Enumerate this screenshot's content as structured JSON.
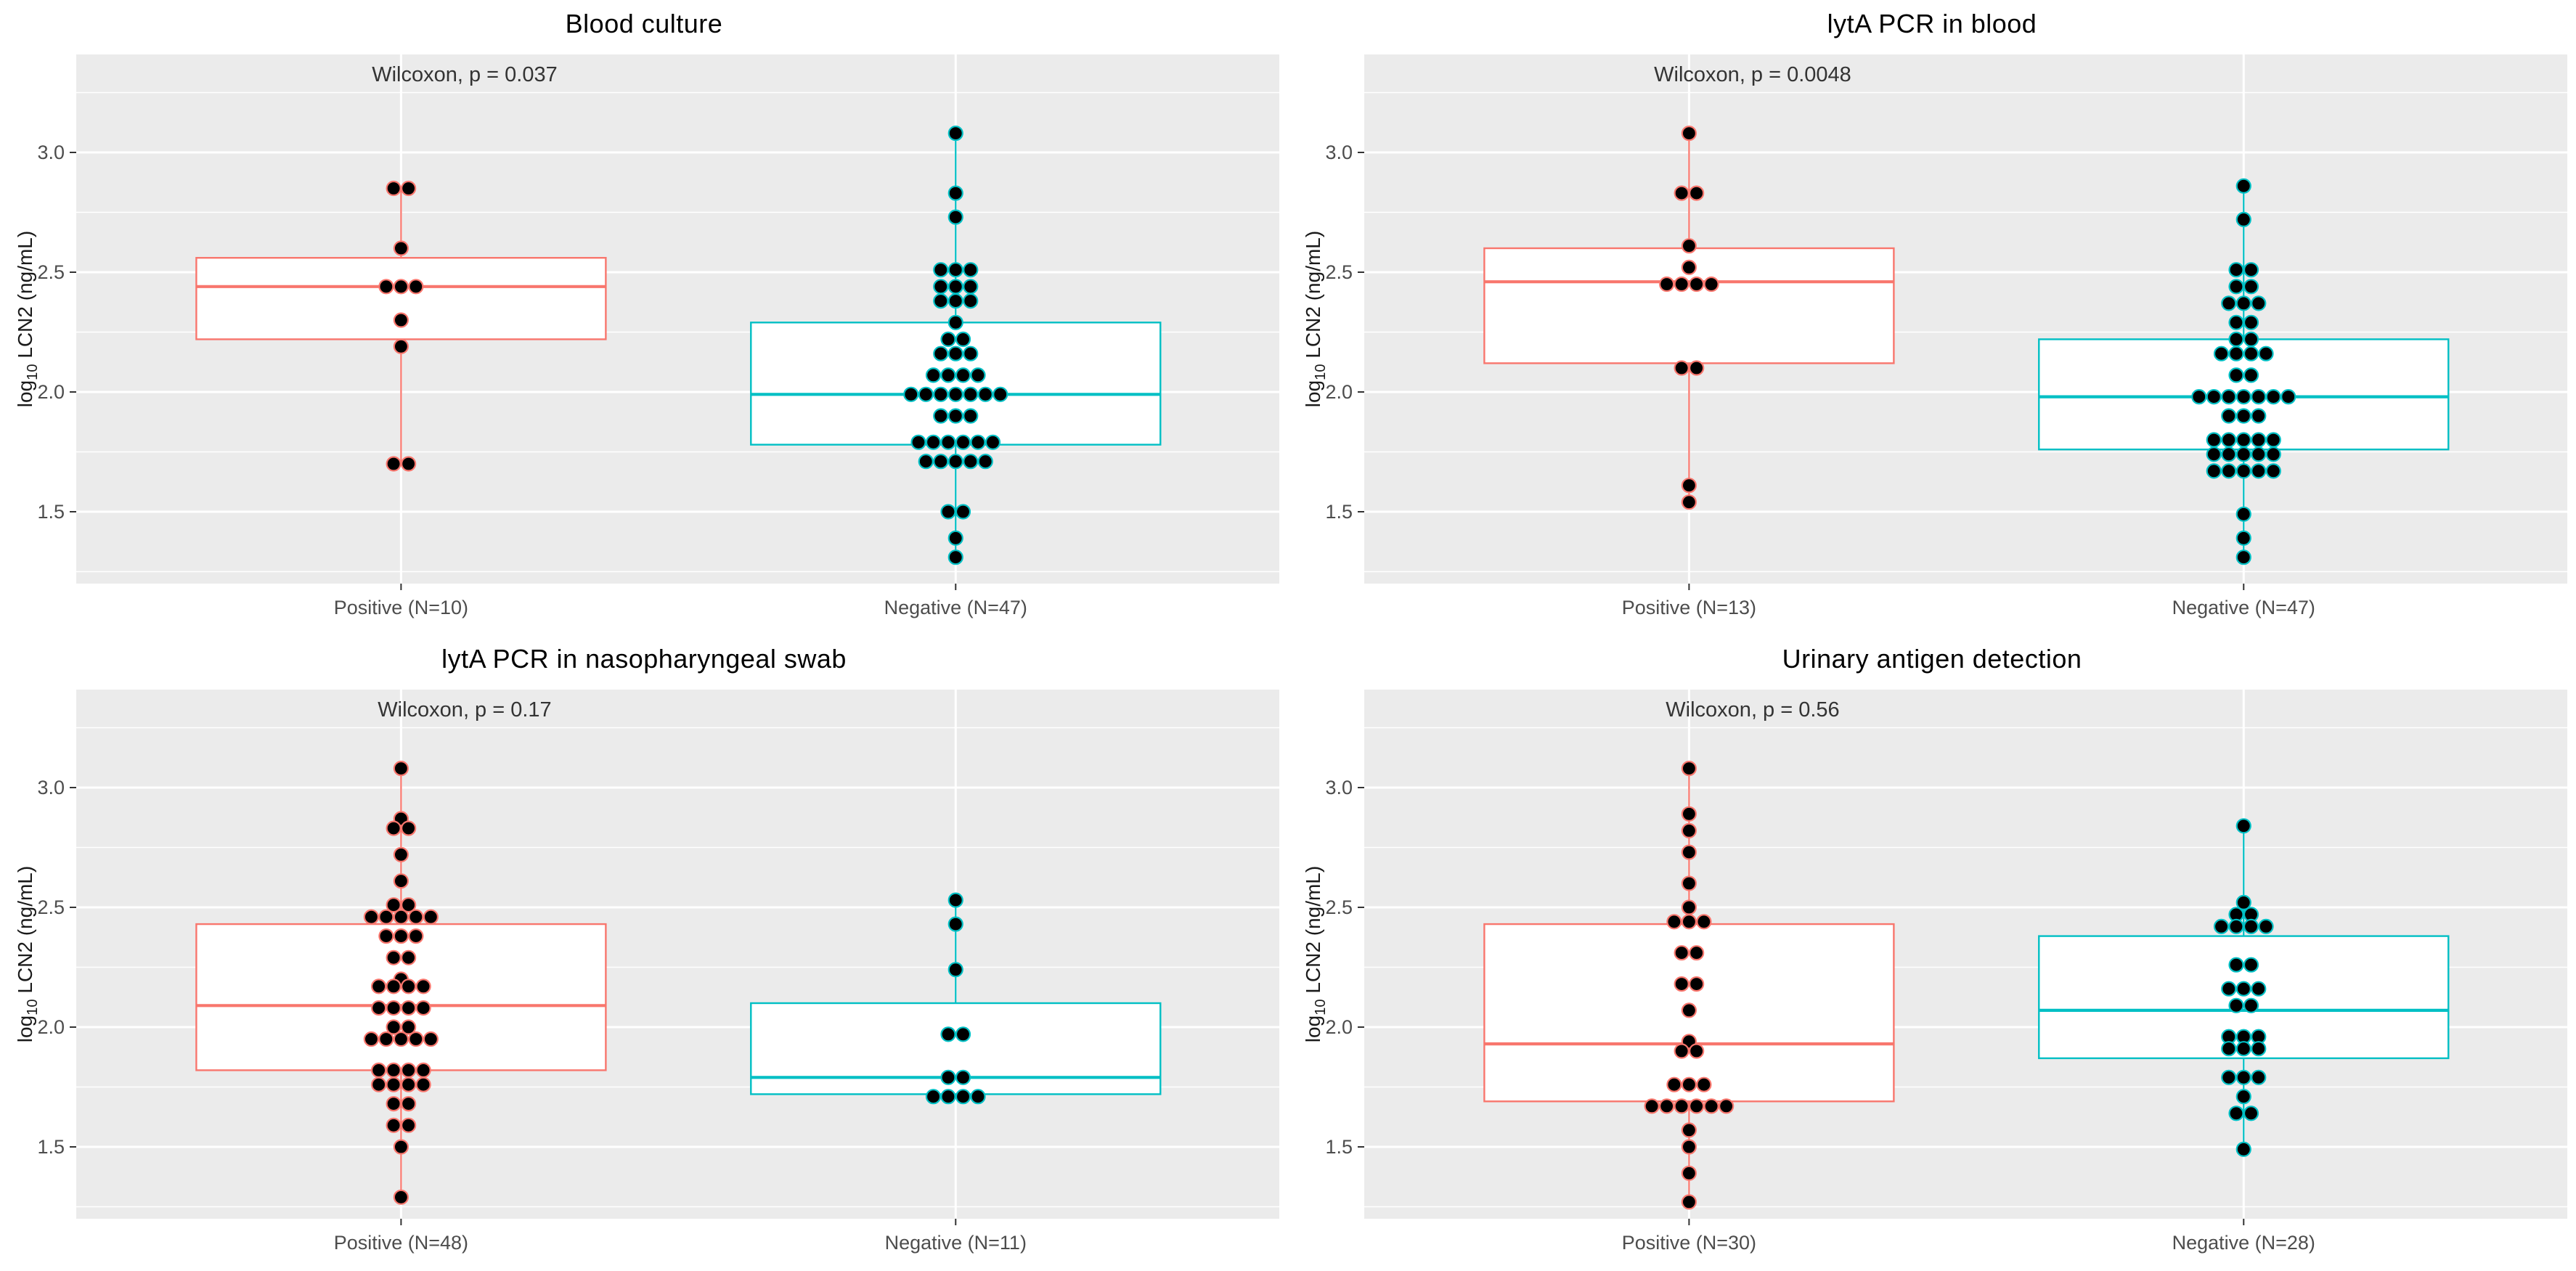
{
  "figure": {
    "background": "#ffffff",
    "panel_background": "#ebebeb",
    "grid_color": "#ffffff",
    "positive_color": "#F8766D",
    "negative_color": "#00BFC4",
    "dot_fill": "#000000",
    "axis_text_color": "#4d4d4d",
    "axis_title_color": "#1a1a1a",
    "p_label_color": "#333333",
    "title_color": "#000000"
  },
  "y_axis": {
    "title_prefix": "log",
    "title_sub": "10",
    "title_suffix": " LCN2 (ng/mL)",
    "title_full": "log10 LCN2 (ng/mL)",
    "tick_labels": [
      "3.0",
      "2.5",
      "2.0",
      "1.5"
    ],
    "tick_values": [
      3.0,
      2.5,
      2.0,
      1.5
    ],
    "minor_values": [
      3.25,
      2.75,
      2.25,
      1.75,
      1.25
    ]
  },
  "chart_data": [
    {
      "type": "boxplot-dotplot",
      "title": "Blood culture",
      "p_label": "Wilcoxon, p = 0.037",
      "ylabel": "log10 LCN2 (ng/mL)",
      "ylim": [
        1.2,
        3.41
      ],
      "groups": [
        {
          "key": "positive",
          "x_label": "Positive (N=10)",
          "n": 10,
          "color": "#F8766D",
          "box": {
            "q1": 2.22,
            "median": 2.44,
            "q3": 2.56,
            "whisker_low": 1.7,
            "whisker_high": 2.85
          },
          "dots": [
            [
              2.85,
              2
            ],
            [
              2.6,
              1
            ],
            [
              2.44,
              3
            ],
            [
              2.3,
              1
            ],
            [
              2.19,
              1
            ],
            [
              1.7,
              2
            ]
          ]
        },
        {
          "key": "negative",
          "x_label": "Negative (N=47)",
          "n": 47,
          "color": "#00BFC4",
          "box": {
            "q1": 1.78,
            "median": 1.99,
            "q3": 2.29,
            "whisker_low": 1.31,
            "whisker_high": 3.08
          },
          "dots": [
            [
              3.08,
              1
            ],
            [
              2.83,
              1
            ],
            [
              2.73,
              1
            ],
            [
              2.51,
              3
            ],
            [
              2.44,
              3
            ],
            [
              2.38,
              3
            ],
            [
              2.29,
              1
            ],
            [
              2.22,
              2
            ],
            [
              2.16,
              3
            ],
            [
              2.07,
              4
            ],
            [
              1.99,
              7
            ],
            [
              1.9,
              3
            ],
            [
              1.79,
              6
            ],
            [
              1.71,
              5
            ],
            [
              1.5,
              2
            ],
            [
              1.39,
              1
            ],
            [
              1.31,
              1
            ]
          ]
        }
      ]
    },
    {
      "type": "boxplot-dotplot",
      "title": "lytA PCR in blood",
      "p_label": "Wilcoxon, p = 0.0048",
      "ylabel": "log10 LCN2 (ng/mL)",
      "ylim": [
        1.2,
        3.41
      ],
      "groups": [
        {
          "key": "positive",
          "x_label": "Positive (N=13)",
          "n": 13,
          "color": "#F8766D",
          "box": {
            "q1": 2.12,
            "median": 2.46,
            "q3": 2.6,
            "whisker_low": 1.54,
            "whisker_high": 3.08
          },
          "dots": [
            [
              3.08,
              1
            ],
            [
              2.83,
              2
            ],
            [
              2.61,
              1
            ],
            [
              2.52,
              1
            ],
            [
              2.45,
              4
            ],
            [
              2.1,
              2
            ],
            [
              1.61,
              1
            ],
            [
              1.54,
              1
            ]
          ]
        },
        {
          "key": "negative",
          "x_label": "Negative (N=47)",
          "n": 47,
          "color": "#00BFC4",
          "box": {
            "q1": 1.76,
            "median": 1.98,
            "q3": 2.22,
            "whisker_low": 1.31,
            "whisker_high": 2.86
          },
          "dots": [
            [
              2.86,
              1
            ],
            [
              2.72,
              1
            ],
            [
              2.51,
              2
            ],
            [
              2.44,
              2
            ],
            [
              2.37,
              3
            ],
            [
              2.29,
              2
            ],
            [
              2.22,
              2
            ],
            [
              2.16,
              4
            ],
            [
              2.07,
              2
            ],
            [
              1.98,
              7
            ],
            [
              1.9,
              3
            ],
            [
              1.8,
              5
            ],
            [
              1.74,
              5
            ],
            [
              1.67,
              5
            ],
            [
              1.49,
              1
            ],
            [
              1.39,
              1
            ],
            [
              1.31,
              1
            ]
          ]
        }
      ]
    },
    {
      "type": "boxplot-dotplot",
      "title": "lytA PCR in nasopharyngeal swab",
      "p_label": "Wilcoxon, p = 0.17",
      "ylabel": "log10 LCN2 (ng/mL)",
      "ylim": [
        1.2,
        3.41
      ],
      "groups": [
        {
          "key": "positive",
          "x_label": "Positive (N=48)",
          "n": 48,
          "color": "#F8766D",
          "box": {
            "q1": 1.82,
            "median": 2.09,
            "q3": 2.43,
            "whisker_low": 1.29,
            "whisker_high": 3.08
          },
          "dots": [
            [
              3.08,
              1
            ],
            [
              2.87,
              1
            ],
            [
              2.83,
              2
            ],
            [
              2.72,
              1
            ],
            [
              2.61,
              1
            ],
            [
              2.51,
              2
            ],
            [
              2.46,
              5
            ],
            [
              2.38,
              3
            ],
            [
              2.29,
              2
            ],
            [
              2.2,
              1
            ],
            [
              2.17,
              4
            ],
            [
              2.08,
              4
            ],
            [
              2.0,
              2
            ],
            [
              1.95,
              5
            ],
            [
              1.82,
              4
            ],
            [
              1.76,
              4
            ],
            [
              1.68,
              2
            ],
            [
              1.59,
              2
            ],
            [
              1.5,
              1
            ],
            [
              1.29,
              1
            ]
          ]
        },
        {
          "key": "negative",
          "x_label": "Negative (N=11)",
          "n": 11,
          "color": "#00BFC4",
          "box": {
            "q1": 1.72,
            "median": 1.79,
            "q3": 2.1,
            "whisker_low": 1.71,
            "whisker_high": 2.53
          },
          "dots": [
            [
              2.53,
              1
            ],
            [
              2.43,
              1
            ],
            [
              2.24,
              1
            ],
            [
              1.97,
              2
            ],
            [
              1.79,
              2
            ],
            [
              1.71,
              4
            ]
          ]
        }
      ]
    },
    {
      "type": "boxplot-dotplot",
      "title": "Urinary antigen detection",
      "p_label": "Wilcoxon, p = 0.56",
      "ylabel": "log10 LCN2 (ng/mL)",
      "ylim": [
        1.2,
        3.41
      ],
      "groups": [
        {
          "key": "positive",
          "x_label": "Positive (N=30)",
          "n": 30,
          "color": "#F8766D",
          "box": {
            "q1": 1.69,
            "median": 1.93,
            "q3": 2.43,
            "whisker_low": 1.27,
            "whisker_high": 3.08
          },
          "dots": [
            [
              3.08,
              1
            ],
            [
              2.89,
              1
            ],
            [
              2.82,
              1
            ],
            [
              2.73,
              1
            ],
            [
              2.6,
              1
            ],
            [
              2.5,
              1
            ],
            [
              2.44,
              3
            ],
            [
              2.31,
              2
            ],
            [
              2.18,
              2
            ],
            [
              2.07,
              1
            ],
            [
              1.94,
              1
            ],
            [
              1.9,
              2
            ],
            [
              1.76,
              3
            ],
            [
              1.67,
              6
            ],
            [
              1.57,
              1
            ],
            [
              1.5,
              1
            ],
            [
              1.39,
              1
            ],
            [
              1.27,
              1
            ]
          ]
        },
        {
          "key": "negative",
          "x_label": "Negative (N=28)",
          "n": 28,
          "color": "#00BFC4",
          "box": {
            "q1": 1.87,
            "median": 2.07,
            "q3": 2.38,
            "whisker_low": 1.49,
            "whisker_high": 2.84
          },
          "dots": [
            [
              2.84,
              1
            ],
            [
              2.52,
              1
            ],
            [
              2.47,
              2
            ],
            [
              2.42,
              4
            ],
            [
              2.26,
              2
            ],
            [
              2.16,
              3
            ],
            [
              2.09,
              2
            ],
            [
              1.96,
              3
            ],
            [
              1.91,
              3
            ],
            [
              1.79,
              3
            ],
            [
              1.71,
              1
            ],
            [
              1.64,
              2
            ],
            [
              1.49,
              1
            ]
          ]
        }
      ]
    }
  ]
}
